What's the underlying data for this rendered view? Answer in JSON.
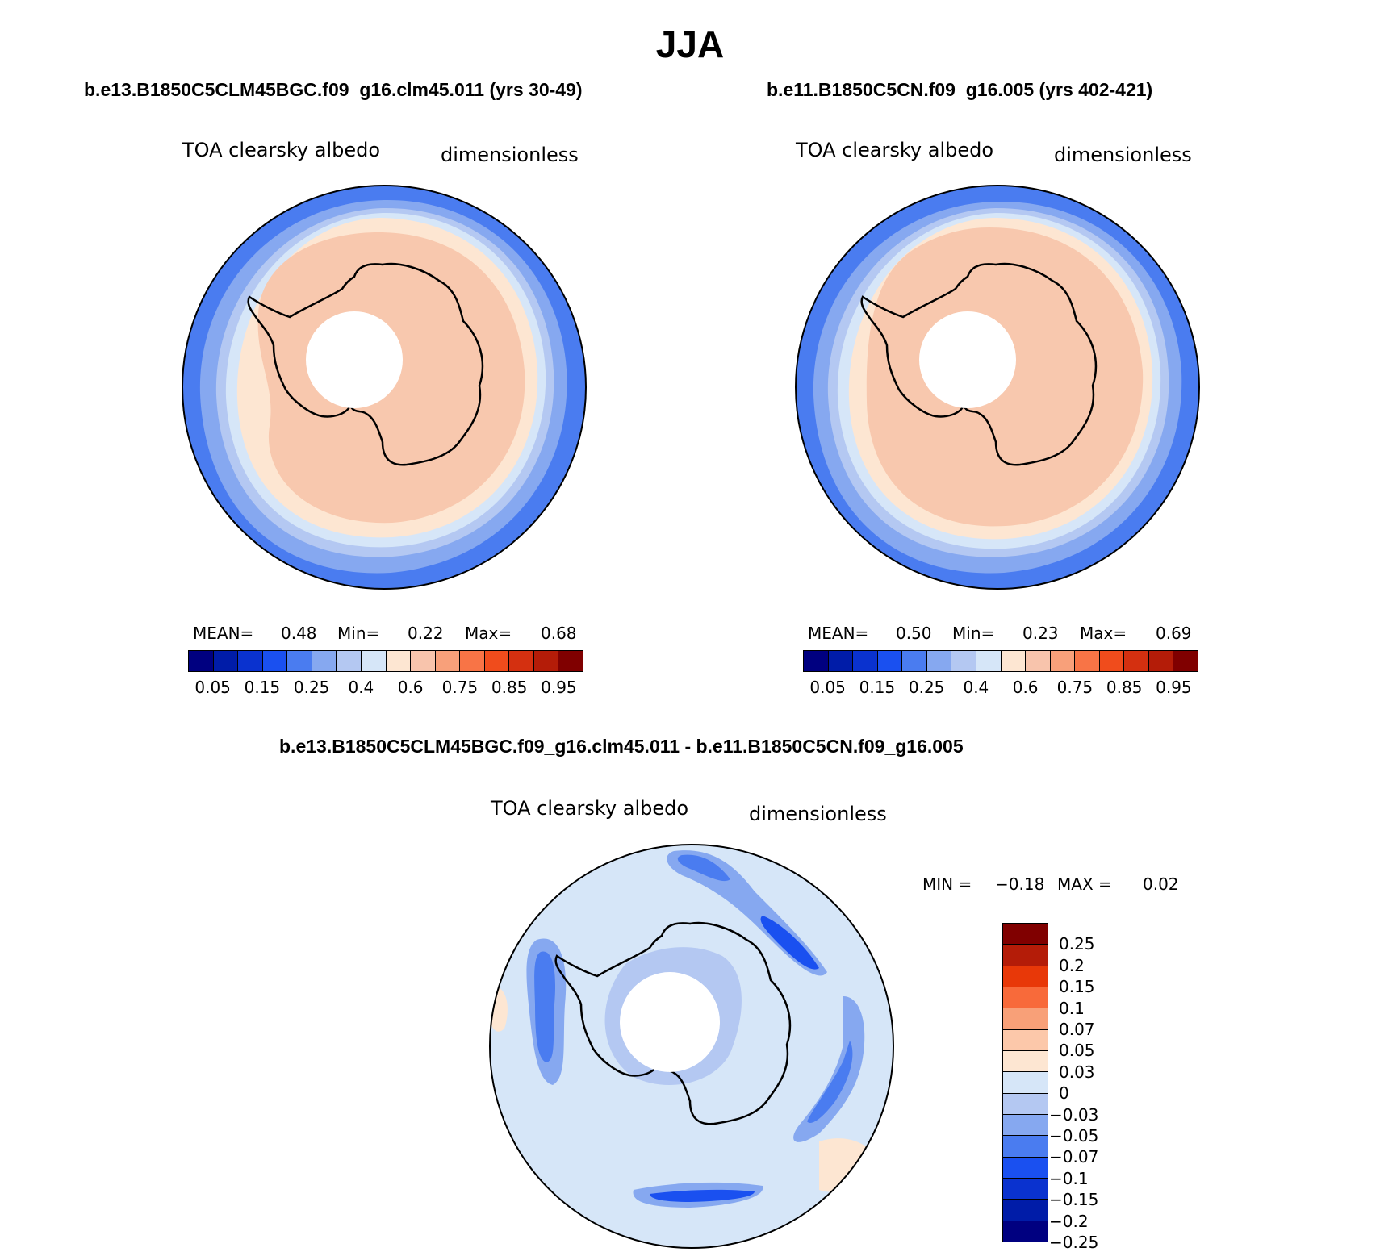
{
  "figure": {
    "title": "JJA"
  },
  "panels": [
    {
      "case_title": "b.e13.B1850C5CLM45BGC.f09_g16.clm45.011 (yrs 30-49)",
      "variable": "TOA clearsky albedo",
      "units": "dimensionless",
      "mean_label": "MEAN=",
      "mean": "0.48",
      "min_label": "Min=",
      "min": "0.22",
      "max_label": "Max=",
      "max": "0.68"
    },
    {
      "case_title": "b.e11.B1850C5CN.f09_g16.005 (yrs 402-421)",
      "variable": "TOA clearsky albedo",
      "units": "dimensionless",
      "mean_label": "MEAN=",
      "mean": "0.50",
      "min_label": "Min=",
      "min": "0.23",
      "max_label": "Max=",
      "max": "0.69"
    }
  ],
  "diff_panel": {
    "case_title": "b.e13.B1850C5CLM45BGC.f09_g16.clm45.011 - b.e11.B1850C5CN.f09_g16.005",
    "variable": "TOA clearsky albedo",
    "units": "dimensionless",
    "min_label": "MIN =",
    "min": "−0.18",
    "max_label": "MAX =",
    "max": "0.02"
  },
  "colorbar_main": {
    "colors": [
      "#000080",
      "#001ca8",
      "#0a32cf",
      "#1a50f0",
      "#4a7cf0",
      "#86a8f0",
      "#b4c8f2",
      "#d6e6f8",
      "#fde6d2",
      "#f8c4ac",
      "#f8a07a",
      "#f87446",
      "#f04c1c",
      "#d43010",
      "#b41c08",
      "#800000"
    ],
    "tick_labels": [
      "0.05",
      "0.15",
      "0.25",
      "0.4",
      "0.6",
      "0.75",
      "0.85",
      "0.95"
    ],
    "tick_positions": [
      1,
      3,
      5,
      7,
      9,
      11,
      13,
      15
    ]
  },
  "colorbar_diff": {
    "colors_top_to_bottom": [
      "#800000",
      "#b41c08",
      "#e83808",
      "#f86a3a",
      "#f8a078",
      "#fcc8aa",
      "#fde6d2",
      "#d6e6f8",
      "#b4c8f2",
      "#86a8f0",
      "#4a7cf0",
      "#1a50f0",
      "#0a32cf",
      "#001ca8",
      "#000080"
    ],
    "tick_labels": [
      "0.25",
      "0.2",
      "0.15",
      "0.1",
      "0.07",
      "0.05",
      "0.03",
      "0",
      "−0.03",
      "−0.05",
      "−0.07",
      "−0.1",
      "−0.15",
      "−0.2",
      "−0.25"
    ]
  },
  "map_colors": {
    "ring_outer": "#4a7cf0",
    "ring_mid": "#86a8f0",
    "ring_light": "#b4c8f2",
    "ring_pale": "#d6e6f8",
    "cream": "#fde6d2",
    "salmon": "#f8c8ae",
    "diff_base": "#d6e6f8",
    "diff_light": "#b4c8f2",
    "diff_mid": "#86a8f0",
    "diff_strong": "#4a7cf0",
    "diff_darker": "#1a50f0",
    "diff_cream": "#fde6d2"
  }
}
